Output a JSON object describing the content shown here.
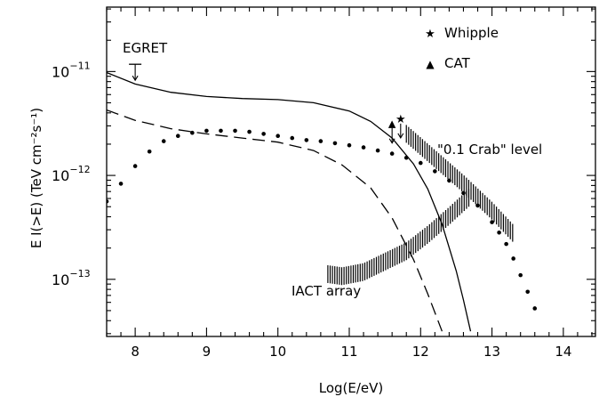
{
  "chart_data": {
    "type": "line",
    "xlabel": "Log(E/eV)",
    "ylabel": "E I(>E)  (TeV cm⁻²s⁻¹)",
    "xlim": [
      7.6,
      14.45
    ],
    "ylim_log10": [
      -13.55,
      -10.38
    ],
    "yscale": "log",
    "grid": false,
    "x_ticks": [
      "8",
      "9",
      "10",
      "11",
      "12",
      "13",
      "14"
    ],
    "y_ticks": [
      {
        "base": "10",
        "exp": "−11",
        "value": -11
      },
      {
        "base": "10",
        "exp": "−12",
        "value": -12
      },
      {
        "base": "10",
        "exp": "−13",
        "value": -13
      }
    ],
    "legend": {
      "placement": "top-right",
      "entries": [
        {
          "symbol": "★",
          "label": "Whipple"
        },
        {
          "symbol": "▲",
          "label": "CAT"
        }
      ]
    },
    "annotations": {
      "egret": "EGRET",
      "crab": "\"0.1 Crab\" level",
      "iact": "IACT array"
    },
    "series": [
      {
        "style": "solid",
        "x": [
          7.6,
          8.0,
          8.5,
          9.0,
          9.5,
          10.0,
          10.5,
          11.0,
          11.3,
          11.6,
          11.9,
          12.1,
          12.3,
          12.5,
          12.6,
          12.7
        ],
        "log10_y": [
          -11.01,
          -11.12,
          -11.2,
          -11.24,
          -11.26,
          -11.27,
          -11.3,
          -11.38,
          -11.48,
          -11.64,
          -11.89,
          -12.13,
          -12.47,
          -12.92,
          -13.2,
          -13.5
        ]
      },
      {
        "style": "dashed",
        "x": [
          7.6,
          8.0,
          8.5,
          9.0,
          9.5,
          10.0,
          10.5,
          10.9,
          11.3,
          11.6,
          11.9,
          12.1,
          12.3
        ],
        "log10_y": [
          -11.37,
          -11.47,
          -11.55,
          -11.6,
          -11.64,
          -11.68,
          -11.76,
          -11.9,
          -12.12,
          -12.41,
          -12.81,
          -13.14,
          -13.5
        ]
      },
      {
        "style": "dotted",
        "x": [
          7.6,
          7.8,
          8.0,
          8.2,
          8.4,
          8.6,
          8.8,
          9.0,
          9.2,
          9.4,
          9.6,
          9.8,
          10.0,
          10.2,
          10.4,
          10.6,
          10.8,
          11.0,
          11.2,
          11.4,
          11.6,
          11.8,
          12.0,
          12.2,
          12.4,
          12.6,
          12.8,
          13.0,
          13.1,
          13.2,
          13.3,
          13.4,
          13.5,
          13.6
        ],
        "log10_y": [
          -12.25,
          -12.08,
          -11.91,
          -11.77,
          -11.67,
          -11.62,
          -11.59,
          -11.57,
          -11.57,
          -11.57,
          -11.58,
          -11.6,
          -11.62,
          -11.64,
          -11.66,
          -11.67,
          -11.69,
          -11.71,
          -11.73,
          -11.76,
          -11.79,
          -11.83,
          -11.88,
          -11.96,
          -12.05,
          -12.17,
          -12.29,
          -12.45,
          -12.55,
          -12.66,
          -12.8,
          -12.96,
          -13.12,
          -13.28
        ]
      }
    ],
    "bands": [
      {
        "label": "\"0.1 Crab\" level",
        "x": [
          11.8,
          12.2,
          12.6,
          13.0,
          13.3
        ],
        "log10_y": [
          -11.6,
          -11.84,
          -12.08,
          -12.34,
          -12.56
        ]
      },
      {
        "label": "IACT array",
        "x": [
          10.7,
          10.9,
          11.2,
          11.5,
          11.8,
          12.1,
          12.4,
          12.7
        ],
        "log10_y": [
          -12.95,
          -12.97,
          -12.93,
          -12.83,
          -12.73,
          -12.57,
          -12.39,
          -12.2
        ]
      }
    ],
    "markers": {
      "whipple": {
        "x": 11.72,
        "log10_y": -11.45
      },
      "cat": {
        "x": 11.6,
        "log10_y": -11.5
      },
      "egret_limit": {
        "x": 8.0,
        "log10_y": -10.93
      }
    }
  }
}
